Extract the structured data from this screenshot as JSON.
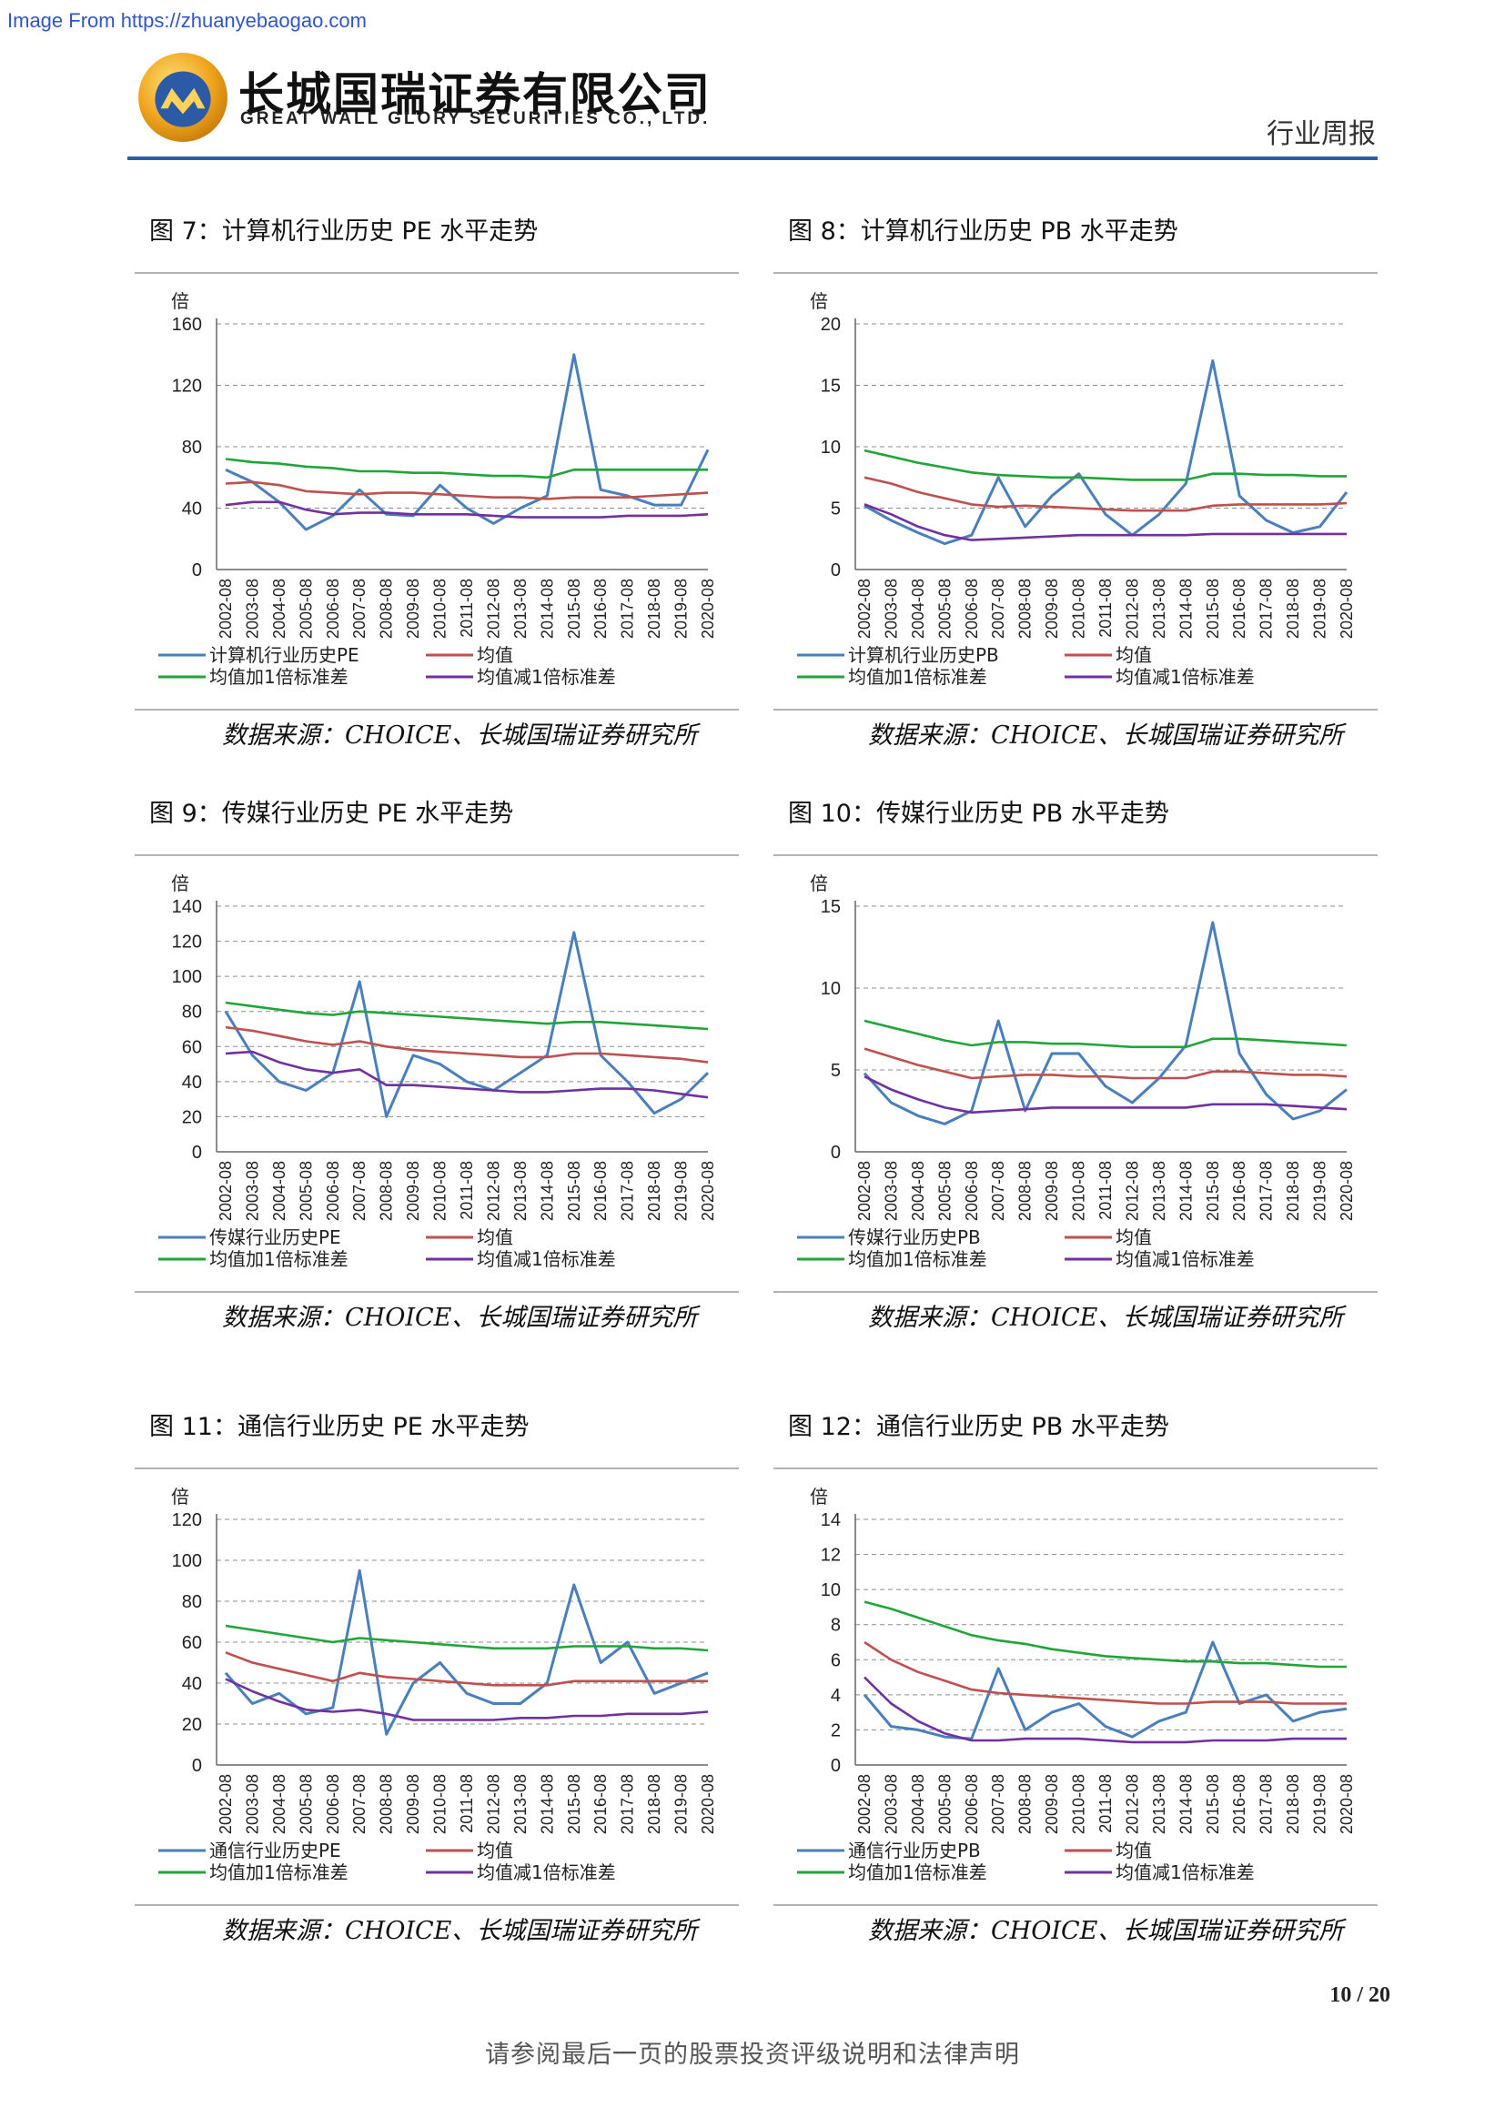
{
  "header": {
    "source_banner": "Image From https://zhuanyebaogao.com",
    "company_cn": "长城国瑞证券有限公司",
    "company_en": "GREAT WALL GLORY SECURITIES CO., LTD.",
    "report_type": "行业周报",
    "logo_icon": "company-logo-icon",
    "accent_color": "#2a5fa8"
  },
  "colors": {
    "history": "#4a7fbd",
    "mean": "#c0504d",
    "plus1": "#1fa637",
    "minus1": "#7030a0"
  },
  "footer": {
    "page": "10 / 20",
    "disclaimer": "请参阅最后一页的股票投资评级说明和法律声明"
  },
  "charts": [
    {
      "title": "图 7：计算机行业历史 PE 水平走势",
      "source": "数据来源：CHOICE、长城国瑞证券研究所",
      "chart_data": {
        "type": "line",
        "ylabel": "倍",
        "ylim": [
          0,
          160
        ],
        "yticks": [
          "160",
          "120",
          "80",
          "40",
          "0"
        ],
        "x_ticks": [
          "2002-08",
          "2003-08",
          "2004-08",
          "2005-08",
          "2006-08",
          "2007-08",
          "2008-08",
          "2009-08",
          "2010-08",
          "2011-08",
          "2012-08",
          "2013-08",
          "2014-08",
          "2015-08",
          "2016-08",
          "2017-08",
          "2018-08",
          "2019-08",
          "2020-08"
        ],
        "series": [
          {
            "name": "计算机行业历史PE",
            "values": [
              65,
              57,
              44,
              26,
              35,
              52,
              36,
              35,
              55,
              40,
              30,
              40,
              48,
              140,
              52,
              48,
              42,
              42,
              78
            ]
          },
          {
            "name": "均值",
            "values": [
              56,
              57,
              55,
              51,
              50,
              49,
              50,
              50,
              49,
              48,
              47,
              47,
              46,
              47,
              47,
              47,
              48,
              49,
              50
            ]
          },
          {
            "name": "均值加1倍标准差",
            "values": [
              72,
              70,
              69,
              67,
              66,
              64,
              64,
              63,
              63,
              62,
              61,
              61,
              60,
              65,
              65,
              65,
              65,
              65,
              65
            ]
          },
          {
            "name": "均值减1倍标准差",
            "values": [
              42,
              44,
              44,
              39,
              36,
              37,
              37,
              36,
              36,
              36,
              35,
              34,
              34,
              34,
              34,
              35,
              35,
              35,
              36
            ]
          }
        ]
      }
    },
    {
      "title": "图 8：计算机行业历史 PB 水平走势",
      "source": "数据来源：CHOICE、长城国瑞证券研究所",
      "chart_data": {
        "type": "line",
        "ylabel": "倍",
        "ylim": [
          0,
          20
        ],
        "yticks": [
          "20",
          "15",
          "10",
          "5",
          "0"
        ],
        "x_ticks": [
          "2002-08",
          "2003-08",
          "2004-08",
          "2005-08",
          "2006-08",
          "2007-08",
          "2008-08",
          "2009-08",
          "2010-08",
          "2011-08",
          "2012-08",
          "2013-08",
          "2014-08",
          "2015-08",
          "2016-08",
          "2017-08",
          "2018-08",
          "2019-08",
          "2020-08"
        ],
        "series": [
          {
            "name": "计算机行业历史PB",
            "values": [
              5.2,
              4.0,
              3.0,
              2.1,
              2.8,
              7.5,
              3.5,
              6.0,
              7.8,
              4.5,
              2.8,
              4.5,
              7.0,
              17.0,
              6.0,
              4.0,
              3.0,
              3.5,
              6.3
            ]
          },
          {
            "name": "均值",
            "values": [
              7.5,
              7.0,
              6.3,
              5.8,
              5.3,
              5.1,
              5.2,
              5.1,
              5.0,
              4.9,
              4.8,
              4.8,
              4.8,
              5.2,
              5.3,
              5.3,
              5.3,
              5.3,
              5.4
            ]
          },
          {
            "name": "均值加1倍标准差",
            "values": [
              9.7,
              9.2,
              8.7,
              8.3,
              7.9,
              7.7,
              7.6,
              7.5,
              7.5,
              7.4,
              7.3,
              7.3,
              7.3,
              7.8,
              7.8,
              7.7,
              7.7,
              7.6,
              7.6
            ]
          },
          {
            "name": "均值减1倍标准差",
            "values": [
              5.3,
              4.5,
              3.5,
              2.8,
              2.4,
              2.5,
              2.6,
              2.7,
              2.8,
              2.8,
              2.8,
              2.8,
              2.8,
              2.9,
              2.9,
              2.9,
              2.9,
              2.9,
              2.9
            ]
          }
        ]
      }
    },
    {
      "title": "图 9：传媒行业历史 PE 水平走势",
      "source": "数据来源：CHOICE、长城国瑞证券研究所",
      "chart_data": {
        "type": "line",
        "ylabel": "倍",
        "ylim": [
          0,
          140
        ],
        "yticks": [
          "140",
          "120",
          "100",
          "80",
          "60",
          "40",
          "20",
          "0"
        ],
        "x_ticks": [
          "2002-08",
          "2003-08",
          "2004-08",
          "2005-08",
          "2006-08",
          "2007-08",
          "2008-08",
          "2009-08",
          "2010-08",
          "2011-08",
          "2012-08",
          "2013-08",
          "2014-08",
          "2015-08",
          "2016-08",
          "2017-08",
          "2018-08",
          "2019-08",
          "2020-08"
        ],
        "series": [
          {
            "name": "传媒行业历史PE",
            "values": [
              80,
              55,
              40,
              35,
              45,
              97,
              20,
              55,
              50,
              40,
              35,
              45,
              55,
              125,
              55,
              40,
              22,
              30,
              45
            ]
          },
          {
            "name": "均值",
            "values": [
              71,
              69,
              66,
              63,
              61,
              63,
              60,
              58,
              57,
              56,
              55,
              54,
              54,
              56,
              56,
              55,
              54,
              53,
              51
            ]
          },
          {
            "name": "均值加1倍标准差",
            "values": [
              85,
              83,
              81,
              79,
              78,
              80,
              79,
              78,
              77,
              76,
              75,
              74,
              73,
              74,
              74,
              73,
              72,
              71,
              70
            ]
          },
          {
            "name": "均值减1倍标准差",
            "values": [
              56,
              57,
              51,
              47,
              45,
              47,
              38,
              38,
              37,
              36,
              35,
              34,
              34,
              35,
              36,
              36,
              35,
              33,
              31
            ]
          }
        ]
      }
    },
    {
      "title": "图 10：传媒行业历史 PB 水平走势",
      "source": "数据来源：CHOICE、长城国瑞证券研究所",
      "chart_data": {
        "type": "line",
        "ylabel": "倍",
        "ylim": [
          0,
          15
        ],
        "yticks": [
          "15",
          "10",
          "5",
          "0"
        ],
        "x_ticks": [
          "2002-08",
          "2003-08",
          "2004-08",
          "2005-08",
          "2006-08",
          "2007-08",
          "2008-08",
          "2009-08",
          "2010-08",
          "2011-08",
          "2012-08",
          "2013-08",
          "2014-08",
          "2015-08",
          "2016-08",
          "2017-08",
          "2018-08",
          "2019-08",
          "2020-08"
        ],
        "series": [
          {
            "name": "传媒行业历史PB",
            "values": [
              4.8,
              3.0,
              2.2,
              1.7,
              2.5,
              8.0,
              2.5,
              6.0,
              6.0,
              4.0,
              3.0,
              4.5,
              6.5,
              14.0,
              6.0,
              3.5,
              2.0,
              2.5,
              3.8
            ]
          },
          {
            "name": "均值",
            "values": [
              6.3,
              5.8,
              5.3,
              4.9,
              4.5,
              4.6,
              4.7,
              4.7,
              4.6,
              4.6,
              4.5,
              4.5,
              4.5,
              4.9,
              4.9,
              4.8,
              4.7,
              4.7,
              4.6
            ]
          },
          {
            "name": "均值加1倍标准差",
            "values": [
              8.0,
              7.6,
              7.2,
              6.8,
              6.5,
              6.7,
              6.7,
              6.6,
              6.6,
              6.5,
              6.4,
              6.4,
              6.4,
              6.9,
              6.9,
              6.8,
              6.7,
              6.6,
              6.5
            ]
          },
          {
            "name": "均值减1倍标准差",
            "values": [
              4.6,
              3.8,
              3.2,
              2.7,
              2.4,
              2.5,
              2.6,
              2.7,
              2.7,
              2.7,
              2.7,
              2.7,
              2.7,
              2.9,
              2.9,
              2.9,
              2.8,
              2.7,
              2.6
            ]
          }
        ]
      }
    },
    {
      "title": "图 11：通信行业历史 PE 水平走势",
      "source": "数据来源：CHOICE、长城国瑞证券研究所",
      "chart_data": {
        "type": "line",
        "ylabel": "倍",
        "ylim": [
          0,
          120
        ],
        "yticks": [
          "120",
          "100",
          "80",
          "60",
          "40",
          "20",
          "0"
        ],
        "x_ticks": [
          "2002-08",
          "2003-08",
          "2004-08",
          "2005-08",
          "2006-08",
          "2007-08",
          "2008-08",
          "2009-08",
          "2010-08",
          "2011-08",
          "2012-08",
          "2013-08",
          "2014-08",
          "2015-08",
          "2016-08",
          "2017-08",
          "2018-08",
          "2019-08",
          "2020-08"
        ],
        "series": [
          {
            "name": "通信行业历史PE",
            "values": [
              45,
              30,
              35,
              25,
              28,
              95,
              15,
              40,
              50,
              35,
              30,
              30,
              40,
              88,
              50,
              60,
              35,
              40,
              45
            ]
          },
          {
            "name": "均值",
            "values": [
              55,
              50,
              47,
              44,
              41,
              45,
              43,
              42,
              41,
              40,
              39,
              39,
              39,
              41,
              41,
              41,
              41,
              41,
              41
            ]
          },
          {
            "name": "均值加1倍标准差",
            "values": [
              68,
              66,
              64,
              62,
              60,
              62,
              61,
              60,
              59,
              58,
              57,
              57,
              57,
              58,
              58,
              58,
              57,
              57,
              56
            ]
          },
          {
            "name": "均值减1倍标准差",
            "values": [
              42,
              36,
              31,
              27,
              26,
              27,
              25,
              22,
              22,
              22,
              22,
              23,
              23,
              24,
              24,
              25,
              25,
              25,
              26
            ]
          }
        ]
      }
    },
    {
      "title": "图 12：通信行业历史 PB 水平走势",
      "source": "数据来源：CHOICE、长城国瑞证券研究所",
      "chart_data": {
        "type": "line",
        "ylabel": "倍",
        "ylim": [
          0,
          14
        ],
        "yticks": [
          "14",
          "12",
          "10",
          "8",
          "6",
          "4",
          "2",
          "0"
        ],
        "x_ticks": [
          "2002-08",
          "2003-08",
          "2004-08",
          "2005-08",
          "2006-08",
          "2007-08",
          "2008-08",
          "2009-08",
          "2010-08",
          "2011-08",
          "2012-08",
          "2013-08",
          "2014-08",
          "2015-08",
          "2016-08",
          "2017-08",
          "2018-08",
          "2019-08",
          "2020-08"
        ],
        "series": [
          {
            "name": "通信行业历史PB",
            "values": [
              4.0,
              2.2,
              2.0,
              1.6,
              1.5,
              5.5,
              2.0,
              3.0,
              3.5,
              2.2,
              1.6,
              2.5,
              3.0,
              7.0,
              3.5,
              4.0,
              2.5,
              3.0,
              3.2
            ]
          },
          {
            "name": "均值",
            "values": [
              7.0,
              6.0,
              5.3,
              4.8,
              4.3,
              4.1,
              4.0,
              3.9,
              3.8,
              3.7,
              3.6,
              3.5,
              3.5,
              3.6,
              3.6,
              3.6,
              3.5,
              3.5,
              3.5
            ]
          },
          {
            "name": "均值加1倍标准差",
            "values": [
              9.3,
              8.9,
              8.4,
              7.9,
              7.4,
              7.1,
              6.9,
              6.6,
              6.4,
              6.2,
              6.1,
              6.0,
              5.9,
              5.9,
              5.8,
              5.8,
              5.7,
              5.6,
              5.6
            ]
          },
          {
            "name": "均值减1倍标准差",
            "values": [
              5.0,
              3.5,
              2.5,
              1.8,
              1.4,
              1.4,
              1.5,
              1.5,
              1.5,
              1.4,
              1.3,
              1.3,
              1.3,
              1.4,
              1.4,
              1.4,
              1.5,
              1.5,
              1.5
            ]
          }
        ]
      }
    }
  ]
}
